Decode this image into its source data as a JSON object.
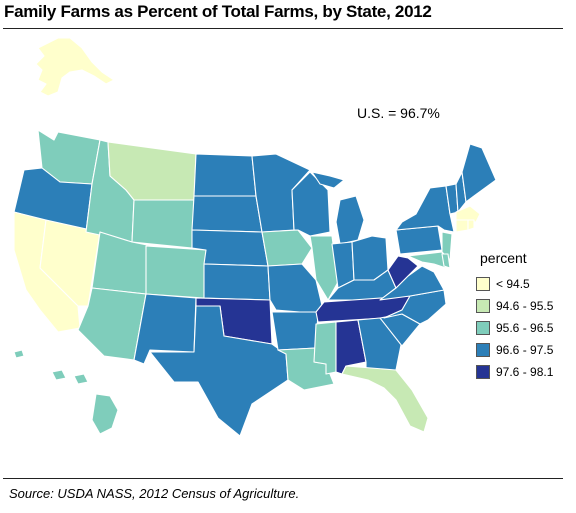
{
  "title": "Family Farms as Percent of Total Farms, by State, 2012",
  "us_note": "U.S. = 96.7%",
  "source": "Source: USDA NASS, 2012 Census of Agriculture.",
  "legend": {
    "title": "percent",
    "classes": [
      {
        "label": "< 94.5",
        "color": "#ffffcc"
      },
      {
        "label": "94.6 - 95.5",
        "color": "#c7e9b4"
      },
      {
        "label": "95.6 - 96.5",
        "color": "#7fcdbb"
      },
      {
        "label": "96.6 - 97.5",
        "color": "#2c7fb8"
      },
      {
        "label": "97.6 - 98.1",
        "color": "#253494"
      }
    ]
  },
  "states": {
    "CA": 0,
    "NV": 0,
    "AK": 0,
    "CT": 0,
    "MA": 0,
    "RI": 0,
    "MT": 1,
    "FL": 1,
    "WA": 2,
    "ID": 2,
    "WY": 2,
    "UT": 2,
    "AZ": 2,
    "CO": 2,
    "IA": 2,
    "IL": 2,
    "LA": 2,
    "MS": 2,
    "NJ": 2,
    "MD": 2,
    "DE": 2,
    "HI": 2,
    "OR": 3,
    "ND": 3,
    "SD": 3,
    "NE": 3,
    "KS": 3,
    "NM": 3,
    "TX": 3,
    "MN": 3,
    "WI": 3,
    "MI": 3,
    "MO": 3,
    "AR": 3,
    "IN": 3,
    "OH": 3,
    "KY": 3,
    "NC": 3,
    "SC": 3,
    "GA": 3,
    "VA": 3,
    "PA": 3,
    "NY": 3,
    "VT": 3,
    "NH": 3,
    "ME": 3,
    "OK": 4,
    "TN": 4,
    "AL": 4,
    "WV": 4
  }
}
